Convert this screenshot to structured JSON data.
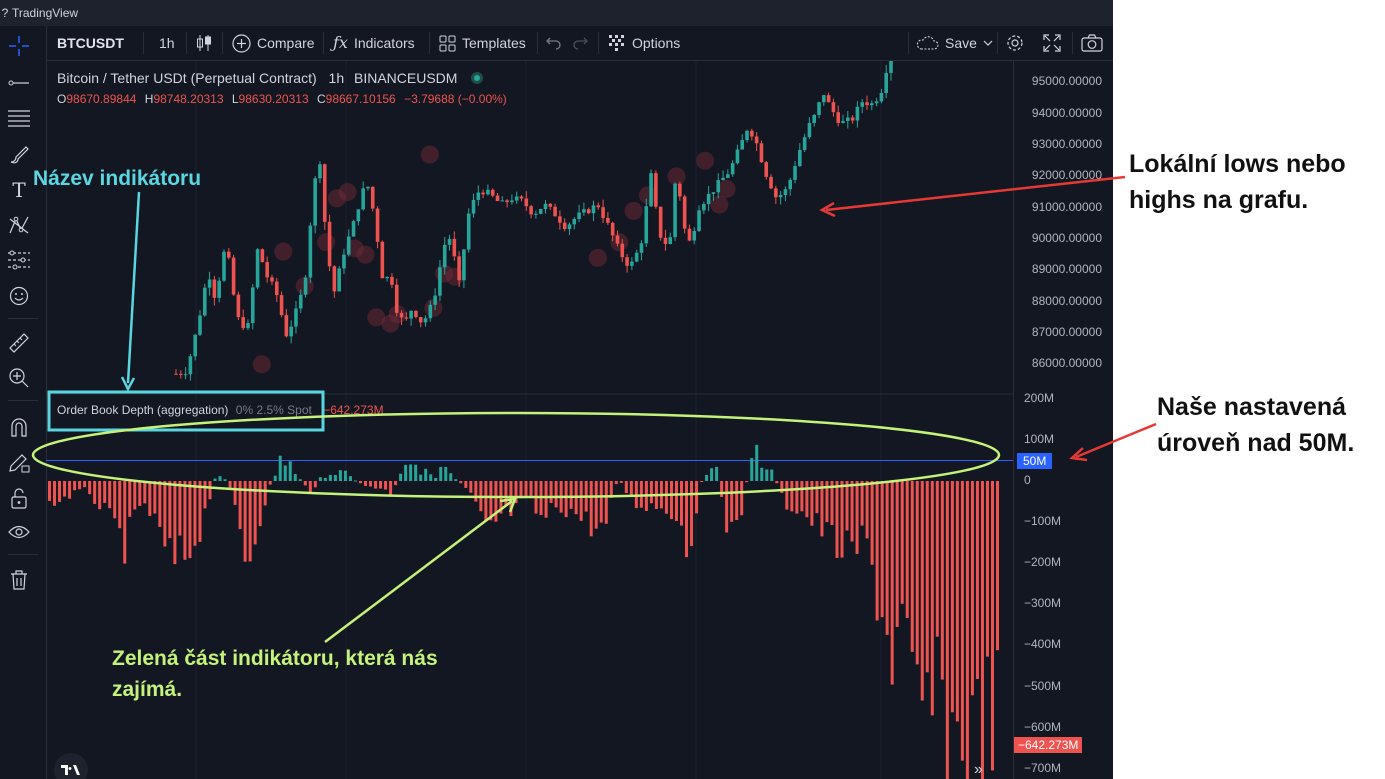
{
  "window": {
    "title": "TradingView",
    "question_mark": "?"
  },
  "toolbar": {
    "symbol": "BTCUSDT",
    "interval": "1h",
    "compare": "Compare",
    "indicators": "Indicators",
    "templates": "Templates",
    "options": "Options",
    "save": "Save"
  },
  "legend": {
    "title": "Bitcoin / Tether USDt (Perpetual Contract)",
    "interval": "1h",
    "exchange": "BINANCEUSDM",
    "o_label": "O",
    "o": "98670.89844",
    "h_label": "H",
    "h": "98748.20313",
    "l_label": "L",
    "l": "98630.20313",
    "c_label": "C",
    "c": "98667.10156",
    "change": "−3.79688 (−0.00%)"
  },
  "indicator": {
    "name": "Order Book Depth (aggregation)",
    "params": "0% 2.5% Spot",
    "value": "−642.273M"
  },
  "price_scale": {
    "ticks": [
      "95000.00000",
      "94000.00000",
      "93000.00000",
      "92000.00000",
      "91000.00000",
      "90000.00000",
      "89000.00000",
      "88000.00000",
      "87000.00000",
      "86000.00000"
    ]
  },
  "indicator_scale": {
    "ticks": [
      "200M",
      "100M",
      "0",
      "−100M",
      "−200M",
      "−300M",
      "−400M",
      "−500M",
      "−600M",
      "−700M"
    ],
    "level_badge": "50M",
    "value_badge": "−642.273M"
  },
  "annotations": {
    "indicator_name": "Název indikátoru",
    "lows_highs_line1": "Lokální lows nebo",
    "lows_highs_line2": "highs na grafu.",
    "level_line1": "Naše nastavená",
    "level_line2": "úroveň nad 50M.",
    "green_part_line1": "Zelená část indikátoru, která nás",
    "green_part_line2": "zajímá."
  },
  "colors": {
    "up": "#26a69a",
    "down": "#ef5350",
    "background": "#131722",
    "level_line": "#2962ff",
    "cyan": "#59d6e0",
    "lime": "#c4f27a",
    "arrow_red": "#e53935"
  },
  "chart_data": [
    {
      "type": "candlestick",
      "title": "Bitcoin / Tether USDt (Perpetual Contract)",
      "interval": "1h",
      "ylim": [
        85500,
        96500
      ],
      "last": {
        "open": 98670.89844,
        "high": 98748.20313,
        "low": 98630.20313,
        "close": 98667.10156
      },
      "close_path": [
        [
          0,
          85700
        ],
        [
          0.015,
          85800
        ],
        [
          0.03,
          87200
        ],
        [
          0.045,
          89000
        ],
        [
          0.055,
          88100
        ],
        [
          0.07,
          89900
        ],
        [
          0.085,
          87500
        ],
        [
          0.1,
          87100
        ],
        [
          0.115,
          89800
        ],
        [
          0.125,
          88900
        ],
        [
          0.14,
          88300
        ],
        [
          0.155,
          86900
        ],
        [
          0.17,
          87800
        ],
        [
          0.18,
          88600
        ],
        [
          0.19,
          91000
        ],
        [
          0.2,
          92900
        ],
        [
          0.21,
          90000
        ],
        [
          0.22,
          88200
        ],
        [
          0.235,
          89600
        ],
        [
          0.25,
          90600
        ],
        [
          0.26,
          91500
        ],
        [
          0.27,
          91700
        ],
        [
          0.28,
          90300
        ],
        [
          0.29,
          88600
        ],
        [
          0.3,
          88900
        ],
        [
          0.31,
          87600
        ],
        [
          0.32,
          87300
        ],
        [
          0.33,
          87800
        ],
        [
          0.345,
          87300
        ],
        [
          0.36,
          88000
        ],
        [
          0.375,
          89800
        ],
        [
          0.385,
          90100
        ],
        [
          0.395,
          88400
        ],
        [
          0.41,
          90900
        ],
        [
          0.425,
          91600
        ],
        [
          0.44,
          91400
        ],
        [
          0.455,
          91100
        ],
        [
          0.47,
          91300
        ],
        [
          0.485,
          91200
        ],
        [
          0.5,
          90800
        ],
        [
          0.515,
          91100
        ],
        [
          0.53,
          90800
        ],
        [
          0.545,
          90400
        ],
        [
          0.56,
          90700
        ],
        [
          0.575,
          90900
        ],
        [
          0.59,
          91100
        ],
        [
          0.605,
          90400
        ],
        [
          0.62,
          89600
        ],
        [
          0.635,
          89100
        ],
        [
          0.65,
          89800
        ],
        [
          0.665,
          92100
        ],
        [
          0.675,
          90200
        ],
        [
          0.69,
          89700
        ],
        [
          0.7,
          92300
        ],
        [
          0.71,
          90400
        ],
        [
          0.72,
          89800
        ],
        [
          0.73,
          91000
        ],
        [
          0.745,
          91400
        ],
        [
          0.76,
          91800
        ],
        [
          0.775,
          92200
        ],
        [
          0.79,
          93000
        ],
        [
          0.8,
          93600
        ],
        [
          0.81,
          93200
        ],
        [
          0.825,
          92100
        ],
        [
          0.84,
          91300
        ],
        [
          0.855,
          91600
        ],
        [
          0.87,
          92700
        ],
        [
          0.885,
          93600
        ],
        [
          0.895,
          94000
        ],
        [
          0.905,
          94700
        ],
        [
          0.915,
          94200
        ],
        [
          0.93,
          93700
        ],
        [
          0.945,
          93800
        ],
        [
          0.96,
          94400
        ],
        [
          0.975,
          94300
        ],
        [
          0.99,
          94900
        ],
        [
          1,
          96500
        ]
      ],
      "marked_swing_points": [
        [
          0.12,
          86000
        ],
        [
          0.15,
          89600
        ],
        [
          0.18,
          88500
        ],
        [
          0.21,
          89900
        ],
        [
          0.225,
          91300
        ],
        [
          0.24,
          91500
        ],
        [
          0.25,
          89700
        ],
        [
          0.265,
          89500
        ],
        [
          0.28,
          87500
        ],
        [
          0.3,
          87300
        ],
        [
          0.31,
          87600
        ],
        [
          0.355,
          92700
        ],
        [
          0.36,
          87800
        ],
        [
          0.375,
          88900
        ],
        [
          0.39,
          88800
        ],
        [
          0.59,
          89400
        ],
        [
          0.62,
          89900
        ],
        [
          0.64,
          90900
        ],
        [
          0.66,
          91400
        ],
        [
          0.7,
          92000
        ],
        [
          0.74,
          92500
        ],
        [
          0.76,
          91100
        ],
        [
          0.77,
          91600
        ]
      ]
    },
    {
      "type": "bar",
      "title": "Order Book Depth (aggregation)",
      "ylim": [
        -720,
        210
      ],
      "ylabel": "M",
      "reference_level": 50,
      "last_value": -642.273,
      "values_path": [
        [
          0,
          -65
        ],
        [
          0.02,
          -40
        ],
        [
          0.04,
          -22
        ],
        [
          0.06,
          -95
        ],
        [
          0.08,
          -170
        ],
        [
          0.1,
          -55
        ],
        [
          0.115,
          -140
        ],
        [
          0.13,
          -230
        ],
        [
          0.145,
          -200
        ],
        [
          0.16,
          -120
        ],
        [
          0.175,
          10
        ],
        [
          0.185,
          15
        ],
        [
          0.195,
          -65
        ],
        [
          0.21,
          -225
        ],
        [
          0.22,
          -110
        ],
        [
          0.235,
          5
        ],
        [
          0.245,
          80
        ],
        [
          0.26,
          25
        ],
        [
          0.275,
          -35
        ],
        [
          0.29,
          25
        ],
        [
          0.31,
          25
        ],
        [
          0.33,
          -10
        ],
        [
          0.35,
          -20
        ],
        [
          0.36,
          -35
        ],
        [
          0.375,
          40
        ],
        [
          0.39,
          50
        ],
        [
          0.405,
          5
        ],
        [
          0.415,
          60
        ],
        [
          0.43,
          5
        ],
        [
          0.445,
          -40
        ],
        [
          0.46,
          -140
        ],
        [
          0.475,
          -100
        ],
        [
          0.49,
          -80
        ],
        [
          0.505,
          -50
        ],
        [
          0.52,
          -110
        ],
        [
          0.535,
          -65
        ],
        [
          0.55,
          -80
        ],
        [
          0.57,
          -115
        ],
        [
          0.585,
          -140
        ],
        [
          0.6,
          10
        ],
        [
          0.615,
          -60
        ],
        [
          0.63,
          -65
        ],
        [
          0.645,
          -70
        ],
        [
          0.66,
          -85
        ],
        [
          0.675,
          -185
        ],
        [
          0.69,
          30
        ],
        [
          0.7,
          90
        ],
        [
          0.715,
          -115
        ],
        [
          0.725,
          -150
        ],
        [
          0.74,
          60
        ],
        [
          0.75,
          90
        ],
        [
          0.76,
          40
        ],
        [
          0.775,
          -60
        ],
        [
          0.79,
          -75
        ],
        [
          0.805,
          -110
        ],
        [
          0.815,
          -130
        ],
        [
          0.83,
          -170
        ],
        [
          0.845,
          -210
        ],
        [
          0.86,
          -150
        ],
        [
          0.875,
          -320
        ],
        [
          0.89,
          -480
        ],
        [
          0.9,
          -380
        ],
        [
          0.91,
          -620
        ],
        [
          0.92,
          -640
        ],
        [
          0.93,
          -590
        ],
        [
          0.94,
          -650
        ],
        [
          0.955,
          -700
        ],
        [
          0.965,
          -680
        ],
        [
          0.975,
          -720
        ],
        [
          0.985,
          -670
        ],
        [
          0.995,
          -642
        ],
        [
          1,
          -642
        ]
      ]
    }
  ]
}
